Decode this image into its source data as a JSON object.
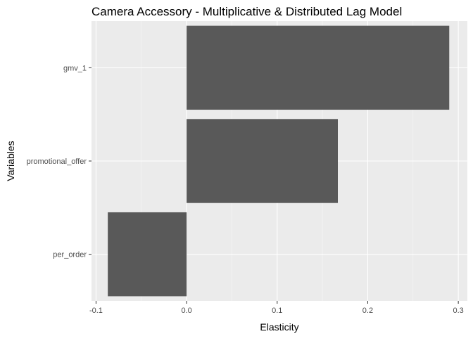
{
  "chart_data": {
    "type": "bar",
    "orientation": "horizontal",
    "title": "Camera Accessory - Multiplicative & Distributed Lag Model",
    "xlabel": "Elasticity",
    "ylabel": "Variables",
    "categories": [
      "gmv_1",
      "promotional_offer",
      "per_order"
    ],
    "values": [
      0.29,
      0.167,
      -0.087
    ],
    "xlim": [
      -0.105,
      0.31
    ],
    "xticks": [
      -0.1,
      0.0,
      0.1,
      0.2,
      0.3
    ],
    "xtick_labels": [
      "-0.1",
      "0.0",
      "0.1",
      "0.2",
      "0.3"
    ],
    "grid": true,
    "legend": "none",
    "colors": {
      "bar": "#595959",
      "panel_background": "#ebebeb",
      "grid_major": "#ffffff",
      "tick_text": "#4d4d4d"
    }
  }
}
